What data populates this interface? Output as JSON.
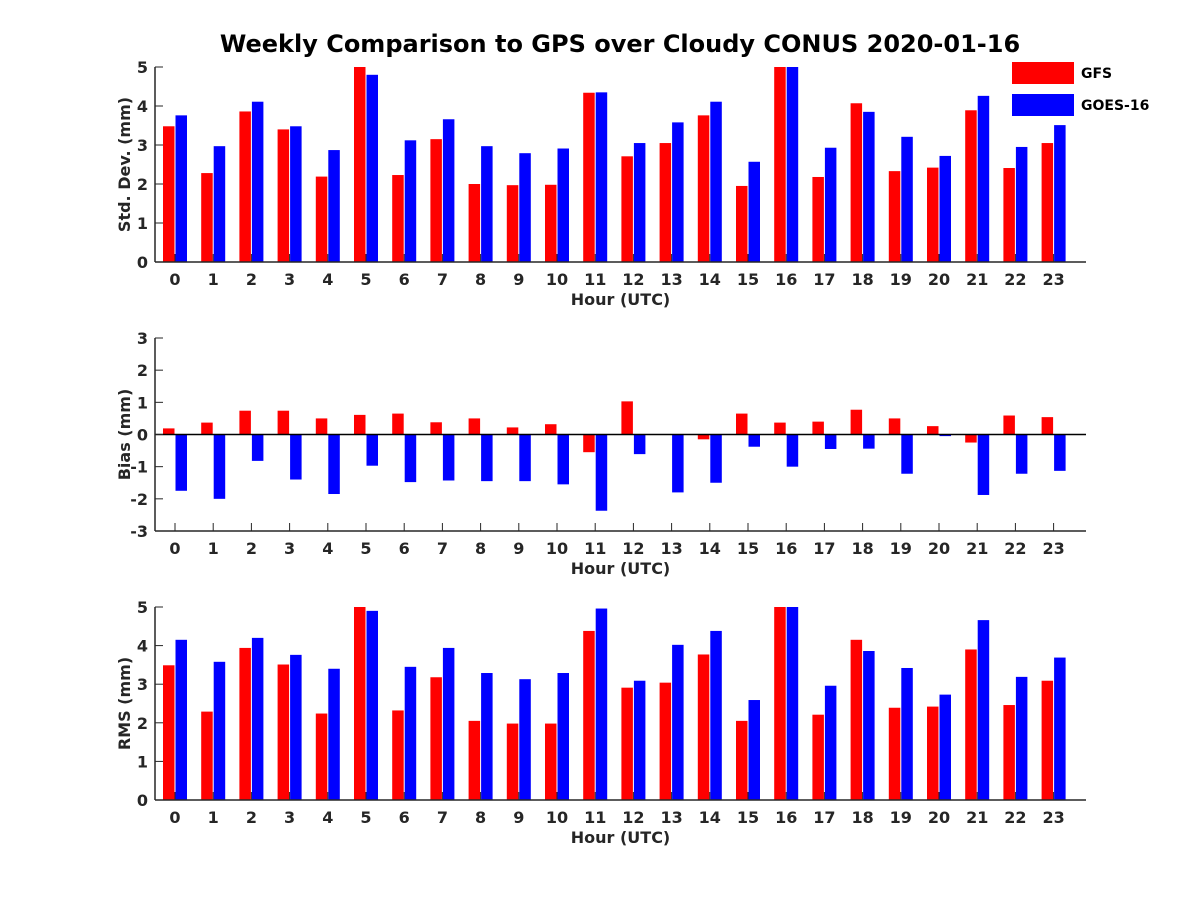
{
  "title": "Weekly Comparison to GPS over Cloudy CONUS 2020-01-16",
  "colors": {
    "GFS": "#ff0000",
    "GOES-16": "#0000ff"
  },
  "chart_data": [
    {
      "type": "bar",
      "categories": [
        "0",
        "1",
        "2",
        "3",
        "4",
        "5",
        "6",
        "7",
        "8",
        "9",
        "10",
        "11",
        "12",
        "13",
        "14",
        "15",
        "16",
        "17",
        "18",
        "19",
        "20",
        "21",
        "22",
        "23"
      ],
      "xlabel": "Hour (UTC)",
      "ylabel": "Std. Dev. (mm)",
      "ylim": [
        0,
        5
      ],
      "yticks": [
        "0",
        "1",
        "2",
        "3",
        "4",
        "5"
      ],
      "legend": "top-right",
      "series": [
        {
          "name": "GFS",
          "values": [
            3.48,
            2.28,
            3.86,
            3.4,
            2.19,
            5.0,
            2.23,
            3.15,
            2.0,
            1.97,
            1.98,
            4.34,
            2.71,
            3.05,
            3.76,
            1.95,
            5.0,
            2.18,
            4.07,
            2.33,
            2.42,
            3.89,
            2.41,
            3.05
          ]
        },
        {
          "name": "GOES-16",
          "values": [
            3.76,
            2.97,
            4.11,
            3.48,
            2.87,
            4.8,
            3.12,
            3.66,
            2.97,
            2.79,
            2.91,
            4.35,
            3.05,
            3.58,
            4.11,
            2.57,
            5.0,
            2.93,
            3.85,
            3.21,
            2.72,
            4.26,
            2.95,
            3.51
          ]
        }
      ]
    },
    {
      "type": "bar",
      "categories": [
        "0",
        "1",
        "2",
        "3",
        "4",
        "5",
        "6",
        "7",
        "8",
        "9",
        "10",
        "11",
        "12",
        "13",
        "14",
        "15",
        "16",
        "17",
        "18",
        "19",
        "20",
        "21",
        "22",
        "23"
      ],
      "xlabel": "Hour (UTC)",
      "ylabel": "Bias (mm)",
      "ylim": [
        -3,
        3
      ],
      "yticks": [
        "-3",
        "-2",
        "-1",
        "0",
        "1",
        "2",
        "3"
      ],
      "series": [
        {
          "name": "GFS",
          "values": [
            0.19,
            0.37,
            0.74,
            0.74,
            0.5,
            0.61,
            0.65,
            0.38,
            0.5,
            0.22,
            0.32,
            -0.55,
            1.03,
            0.0,
            -0.15,
            0.65,
            0.37,
            0.4,
            0.77,
            0.5,
            0.26,
            -0.25,
            0.59,
            0.54
          ]
        },
        {
          "name": "GOES-16",
          "values": [
            -1.75,
            -2.0,
            -0.82,
            -1.4,
            -1.85,
            -0.97,
            -1.48,
            -1.43,
            -1.45,
            -1.45,
            -1.55,
            -2.37,
            -0.61,
            -1.8,
            -1.5,
            -0.38,
            -1.0,
            -0.45,
            -0.44,
            -1.22,
            -0.05,
            -1.88,
            -1.22,
            -1.13
          ]
        }
      ]
    },
    {
      "type": "bar",
      "categories": [
        "0",
        "1",
        "2",
        "3",
        "4",
        "5",
        "6",
        "7",
        "8",
        "9",
        "10",
        "11",
        "12",
        "13",
        "14",
        "15",
        "16",
        "17",
        "18",
        "19",
        "20",
        "21",
        "22",
        "23"
      ],
      "xlabel": "Hour (UTC)",
      "ylabel": "RMS (mm)",
      "ylim": [
        0,
        5
      ],
      "yticks": [
        "0",
        "1",
        "2",
        "3",
        "4",
        "5"
      ],
      "series": [
        {
          "name": "GFS",
          "values": [
            3.49,
            2.29,
            3.94,
            3.51,
            2.24,
            5.0,
            2.32,
            3.18,
            2.05,
            1.98,
            1.98,
            4.38,
            2.91,
            3.04,
            3.77,
            2.05,
            5.0,
            2.21,
            4.15,
            2.39,
            2.42,
            3.9,
            2.46,
            3.09
          ]
        },
        {
          "name": "GOES-16",
          "values": [
            4.15,
            3.58,
            4.2,
            3.76,
            3.4,
            4.9,
            3.45,
            3.94,
            3.29,
            3.13,
            3.29,
            4.96,
            3.09,
            4.02,
            4.38,
            2.59,
            5.0,
            2.96,
            3.86,
            3.42,
            2.73,
            4.66,
            3.19,
            3.69
          ]
        }
      ]
    }
  ]
}
